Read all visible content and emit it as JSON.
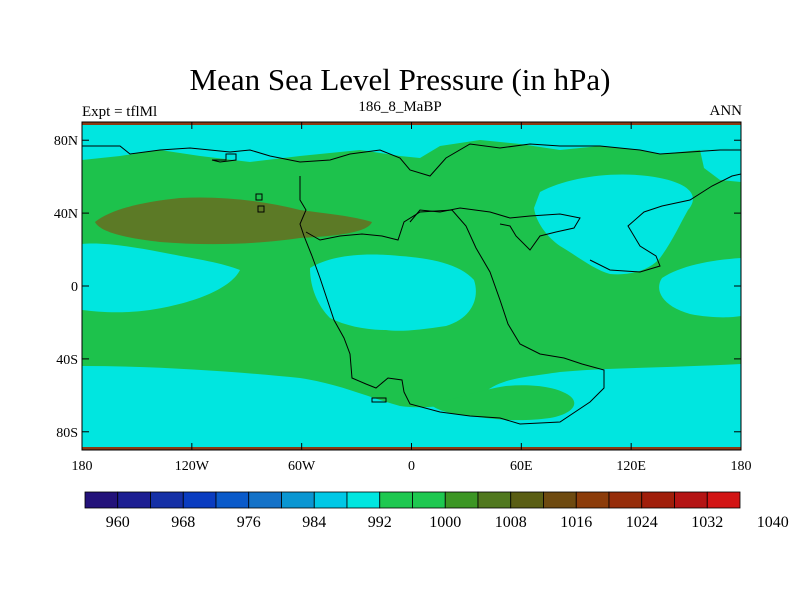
{
  "title": "Mean Sea Level Pressure (in hPa)",
  "subtitle_left": "Expt = tflMl",
  "subtitle_center": "186_8_MaBP",
  "subtitle_right": "ANN",
  "map": {
    "projection": "cylindrical equidistant",
    "lon_range": [
      -180,
      180
    ],
    "lat_range": [
      -90,
      90
    ],
    "lat_ticks": [
      {
        "label": "80N",
        "value": 80
      },
      {
        "label": "40N",
        "value": 40
      },
      {
        "label": "0",
        "value": 0
      },
      {
        "label": "40S",
        "value": -40
      },
      {
        "label": "80S",
        "value": -80
      }
    ],
    "lon_ticks": [
      {
        "label": "180",
        "value": -180
      },
      {
        "label": "120W",
        "value": -120
      },
      {
        "label": "60W",
        "value": -60
      },
      {
        "label": "0",
        "value": 0
      },
      {
        "label": "60E",
        "value": 60
      },
      {
        "label": "120E",
        "value": 120
      },
      {
        "label": "180",
        "value": 180
      }
    ],
    "contour_fill": {
      "background_level_color": "#1dc24c",
      "low_level_color": "#00e6e0",
      "high_level_color": "#5c7a26",
      "polar_strip_color": "#8b3a14"
    }
  },
  "colorbar": {
    "colors": [
      "#23127a",
      "#1c1e92",
      "#1530a6",
      "#0a3cc0",
      "#0a5aca",
      "#1472c8",
      "#0a96d2",
      "#00c8e6",
      "#00e6e0",
      "#1ec850",
      "#1ec850",
      "#3c9624",
      "#50781e",
      "#5a5e14",
      "#6e4a10",
      "#8c3c0a",
      "#962d0a",
      "#a01e0a",
      "#b41414",
      "#d21414"
    ],
    "labels": [
      "960",
      "968",
      "976",
      "984",
      "992",
      "1000",
      "1008",
      "1016",
      "1024",
      "1032",
      "1040"
    ]
  }
}
